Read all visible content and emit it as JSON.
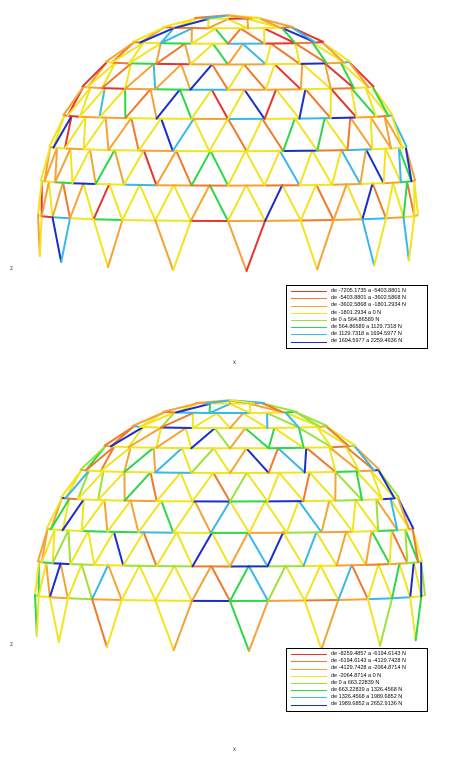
{
  "top": {
    "axis_z": "z",
    "axis_x": "x",
    "legend": [
      {
        "label": "de -7205.1735 a -5403.8801 N",
        "color": "#e8342a"
      },
      {
        "label": "de -5403.8801 a -3602.5868 N",
        "color": "#f07a2a"
      },
      {
        "label": "de -3602.5868 a -1801.2934 N",
        "color": "#f5a335"
      },
      {
        "label": "de -1801.2934 a 0 N",
        "color": "#f2e41f"
      },
      {
        "label": "de 0 a 564.86589 N",
        "color": "#9be23a"
      },
      {
        "label": "de 564.86589 a 1129.7318 N",
        "color": "#2bd84a"
      },
      {
        "label": "de 1129.7318 a 1694.5977 N",
        "color": "#3ab8e8"
      },
      {
        "label": "de 1694.5977 a 2259.4636 N",
        "color": "#1a2fc9"
      }
    ]
  },
  "bottom": {
    "axis_z": "z",
    "axis_x": "x",
    "legend": [
      {
        "label": "de -8259.4857 a -6194.6143 N",
        "color": "#e8342a"
      },
      {
        "label": "de -6194.6143 a -4129.7428 N",
        "color": "#f07a2a"
      },
      {
        "label": "de -4129.7428 a -2064.8714 N",
        "color": "#f5a335"
      },
      {
        "label": "de -2064.8714 a 0 N",
        "color": "#f2e41f"
      },
      {
        "label": "de 0 a 663.22839 N",
        "color": "#9be23a"
      },
      {
        "label": "de 663.22839 a 1326.4568 N",
        "color": "#2bd84a"
      },
      {
        "label": "de 1326.4568 a 1989.6852 N",
        "color": "#3ab8e8"
      },
      {
        "label": "de 1989.6852 a 2652.9136 N",
        "color": "#1a2fc9"
      }
    ]
  },
  "dome_palettes": {
    "top": [
      "#f2e41f",
      "#f2e41f",
      "#f5a335",
      "#f5a335",
      "#f07a2a",
      "#f2e41f",
      "#e8342a",
      "#3ab8e8",
      "#2bd84a",
      "#1a2fc9",
      "#f5a335",
      "#f2e41f"
    ],
    "bottom": [
      "#f2e41f",
      "#f2e41f",
      "#f2e41f",
      "#f5a335",
      "#f5a335",
      "#f2e41f",
      "#2bd84a",
      "#3ab8e8",
      "#9be23a",
      "#1a2fc9",
      "#f2e41f",
      "#f07a2a"
    ]
  }
}
